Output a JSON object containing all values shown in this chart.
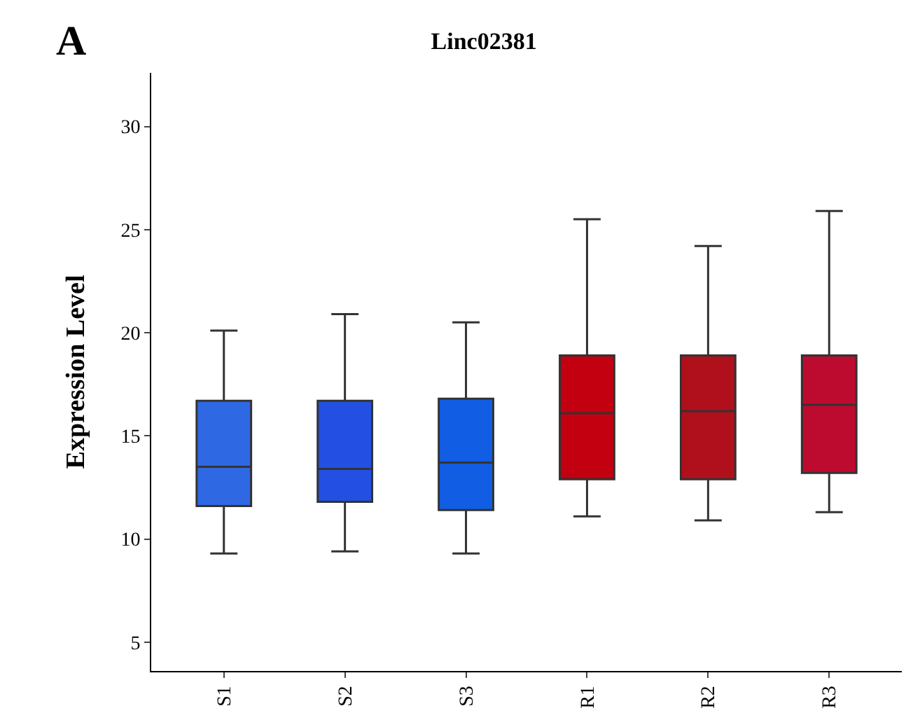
{
  "chart_data": {
    "type": "box",
    "title": "Linc02381",
    "ylabel": "Expression Level",
    "annotations": [
      "A"
    ],
    "categories": [
      "S1",
      "S2",
      "S3",
      "R1",
      "R2",
      "R3"
    ],
    "colors": [
      "#2f68e3",
      "#2350e3",
      "#115de3",
      "#c2000f",
      "#b0101c",
      "#bd0b30"
    ],
    "boxes": [
      {
        "low": 9.3,
        "q1": 11.6,
        "median": 13.5,
        "q3": 16.7,
        "high": 20.1
      },
      {
        "low": 9.4,
        "q1": 11.8,
        "median": 13.4,
        "q3": 16.7,
        "high": 20.9
      },
      {
        "low": 9.3,
        "q1": 11.4,
        "median": 13.7,
        "q3": 16.8,
        "high": 20.5
      },
      {
        "low": 11.1,
        "q1": 12.9,
        "median": 16.1,
        "q3": 18.9,
        "high": 25.5
      },
      {
        "low": 10.9,
        "q1": 12.9,
        "median": 16.2,
        "q3": 18.9,
        "high": 24.2
      },
      {
        "low": 11.3,
        "q1": 13.2,
        "median": 16.5,
        "q3": 18.9,
        "high": 25.9
      }
    ],
    "ylim": [
      3.6,
      32.6
    ],
    "yticks": [
      5,
      10,
      15,
      20,
      25,
      30
    ],
    "grid": false
  }
}
